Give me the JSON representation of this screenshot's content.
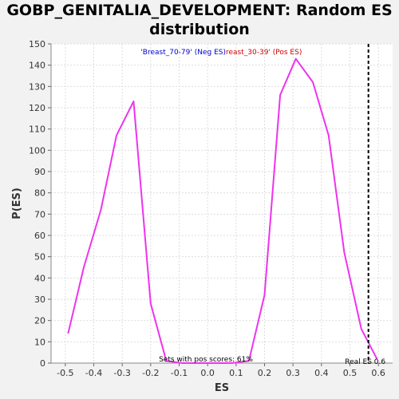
{
  "title": "GOBP_GENITALIA_DEVELOPMENT: Random ES distribution",
  "chart_data": {
    "type": "line",
    "title": "GOBP_GENITALIA_DEVELOPMENT: Random ES distribution",
    "xlabel": "ES",
    "ylabel": "P(ES)",
    "xlim": [
      -0.55,
      0.65
    ],
    "ylim": [
      0,
      150
    ],
    "x_ticks": [
      "-0.5",
      "-0.4",
      "-0.3",
      "-0.2",
      "-0.1",
      "0.0",
      "0.1",
      "0.2",
      "0.3",
      "0.4",
      "0.5",
      "0.6"
    ],
    "y_ticks": [
      "0",
      "10",
      "20",
      "30",
      "40",
      "50",
      "60",
      "70",
      "80",
      "90",
      "100",
      "110",
      "120",
      "130",
      "140",
      "150"
    ],
    "grid": true,
    "series": [
      {
        "color": "#ee33ee",
        "x": [
          -0.49,
          -0.435,
          -0.375,
          -0.32,
          -0.26,
          -0.2,
          -0.145,
          -0.09,
          -0.03,
          0.03,
          0.085,
          0.145,
          0.2,
          0.255,
          0.31,
          0.37,
          0.425,
          0.48,
          0.54,
          0.595
        ],
        "y": [
          14,
          45,
          72,
          107,
          123,
          28,
          1,
          0,
          0,
          0,
          0,
          1,
          32,
          126,
          143,
          132,
          107,
          52,
          16,
          2
        ]
      }
    ],
    "legend": {
      "position": "top-center",
      "neg_label": "'Breast_70-79' (Neg ES)",
      "neg_color": "#0000cc",
      "pos_label": "reast_30-39' (Pos ES)",
      "pos_color": "#cc0000"
    },
    "annotations": {
      "pos_scores": "Sets with pos scores: 61%",
      "real_es_label": "Real ES 0.6",
      "real_es_value": 0.565
    }
  }
}
